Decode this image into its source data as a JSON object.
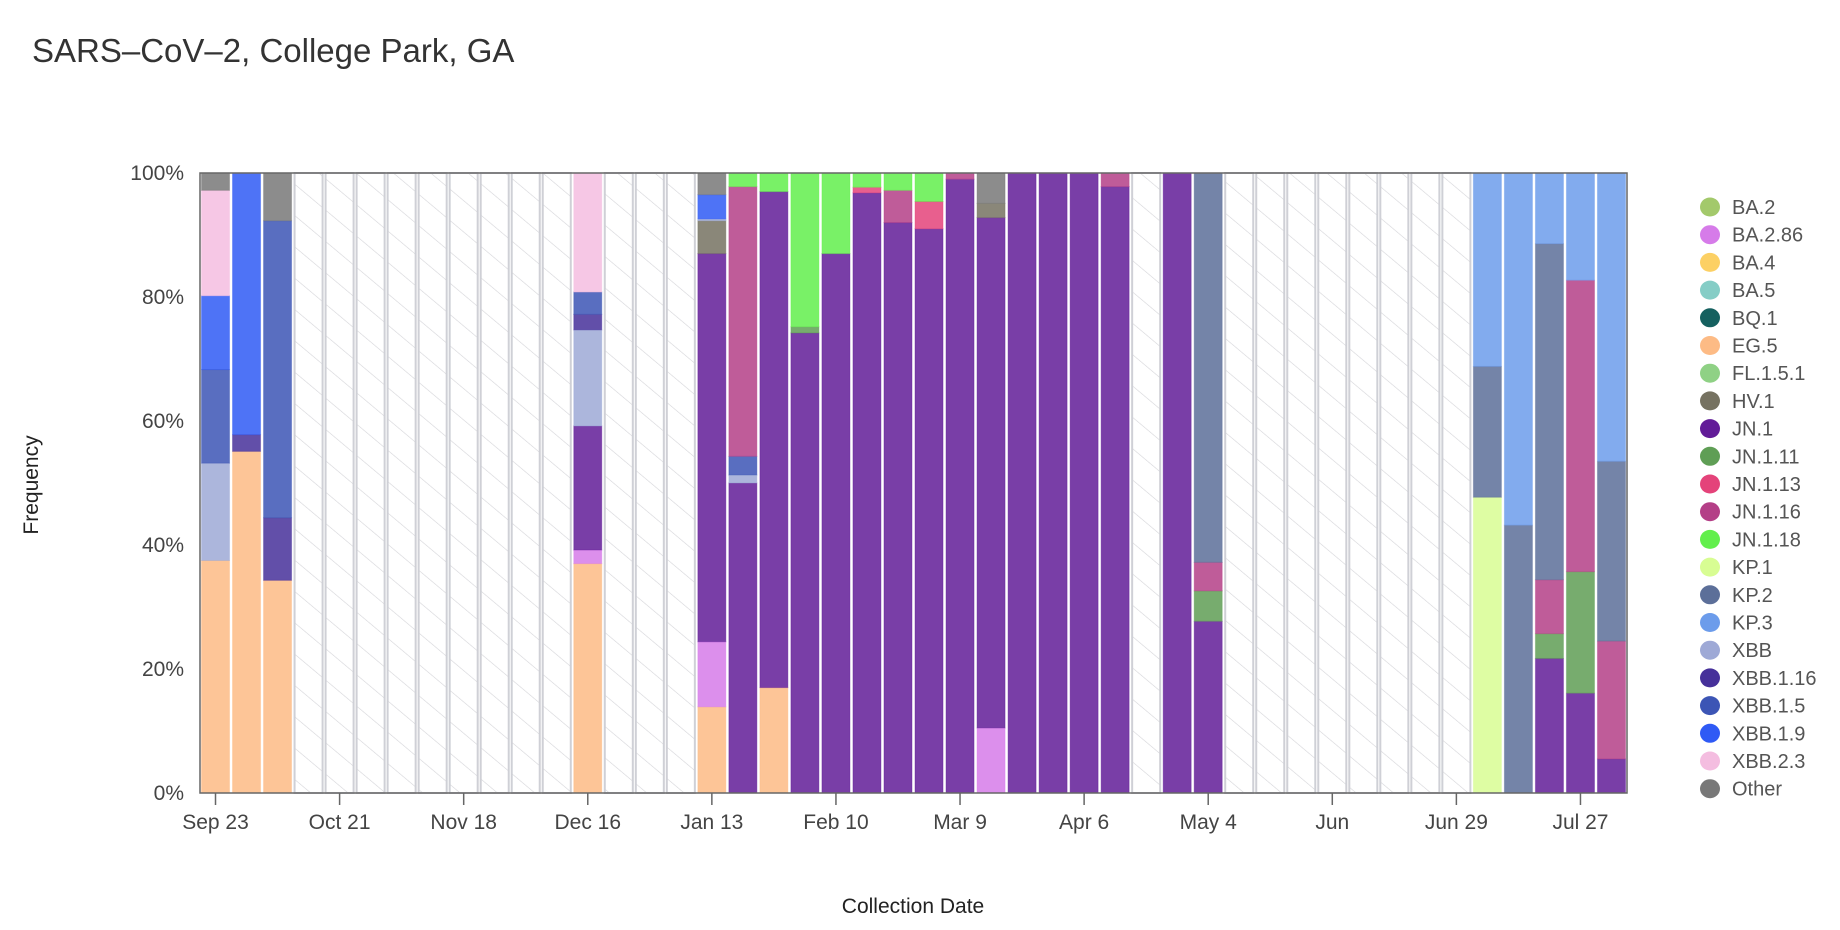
{
  "chart_data": {
    "type": "bar",
    "stacked": true,
    "title": "SARS–CoV–2, College Park, GA",
    "xlabel": "Collection Date",
    "ylabel": "Frequency",
    "ylim": [
      0,
      100
    ],
    "y_ticks": [
      "0%",
      "20%",
      "40%",
      "60%",
      "80%",
      "100%"
    ],
    "x_ticks": [
      {
        "label": "Sep 23",
        "week": 0
      },
      {
        "label": "Oct 21",
        "week": 4
      },
      {
        "label": "Nov 18",
        "week": 8
      },
      {
        "label": "Dec 16",
        "week": 12
      },
      {
        "label": "Jan 13",
        "week": 16
      },
      {
        "label": "Feb 10",
        "week": 20
      },
      {
        "label": "Mar 9",
        "week": 24
      },
      {
        "label": "Apr 6",
        "week": 28
      },
      {
        "label": "May 4",
        "week": 32
      },
      {
        "label": "Jun",
        "week": 36
      },
      {
        "label": "Jun 29",
        "week": 40
      },
      {
        "label": "Jul 27",
        "week": 44
      }
    ],
    "legend_position": "right",
    "legend": [
      {
        "name": "BA.2",
        "color": "#a3c96b"
      },
      {
        "name": "BA.2.86",
        "color": "#d67be9"
      },
      {
        "name": "BA.4",
        "color": "#fcd064"
      },
      {
        "name": "BA.5",
        "color": "#85cdc6"
      },
      {
        "name": "BQ.1",
        "color": "#15605f"
      },
      {
        "name": "EG.5",
        "color": "#fdbb85"
      },
      {
        "name": "FL.1.5.1",
        "color": "#8fd185"
      },
      {
        "name": "HV.1",
        "color": "#767261"
      },
      {
        "name": "JN.1",
        "color": "#621c98"
      },
      {
        "name": "JN.1.11",
        "color": "#5f9e55"
      },
      {
        "name": "JN.1.13",
        "color": "#e4437a"
      },
      {
        "name": "JN.1.16",
        "color": "#b43f87"
      },
      {
        "name": "JN.1.18",
        "color": "#62ef4c"
      },
      {
        "name": "KP.1",
        "color": "#d8fd93"
      },
      {
        "name": "KP.2",
        "color": "#5c6f99"
      },
      {
        "name": "KP.3",
        "color": "#6c9ceb"
      },
      {
        "name": "XBB",
        "color": "#9ea9d6"
      },
      {
        "name": "XBB.1.16",
        "color": "#46309a"
      },
      {
        "name": "XBB.1.5",
        "color": "#3c55b5"
      },
      {
        "name": "XBB.1.9",
        "color": "#2f5af5"
      },
      {
        "name": "XBB.2.3",
        "color": "#f4bde0"
      },
      {
        "name": "Other",
        "color": "#787878"
      }
    ],
    "stack_order": [
      "EG.5",
      "BA.2.86",
      "KP.1",
      "JN.1",
      "JN.1.11",
      "HV.1",
      "XBB",
      "XBB.1.16",
      "XBB.1.5",
      "JN.1.16",
      "JN.1.13",
      "KP.2",
      "XBB.1.9",
      "JN.1.18",
      "XBB.2.3",
      "KP.3",
      "Other"
    ],
    "weeks": [
      {
        "date": "Sep 23",
        "values": {
          "EG.5": 37.5,
          "XBB": 15.7,
          "XBB.1.5": 15.1,
          "XBB.1.9": 11.9,
          "XBB.2.3": 17.0,
          "Other": 2.8
        }
      },
      {
        "date": "Sep 30",
        "values": {
          "EG.5": 55.1,
          "XBB.1.16": 2.7,
          "XBB.1.9": 42.2
        }
      },
      {
        "date": "Oct 7",
        "values": {
          "EG.5": 34.3,
          "XBB.1.16": 10.1,
          "XBB.1.5": 47.9,
          "Other": 7.7
        }
      },
      {
        "date": "Oct 14",
        "values": null
      },
      {
        "date": "Oct 21",
        "values": null
      },
      {
        "date": "Oct 28",
        "values": null
      },
      {
        "date": "Nov 4",
        "values": null
      },
      {
        "date": "Nov 11",
        "values": null
      },
      {
        "date": "Nov 18",
        "values": null
      },
      {
        "date": "Nov 25",
        "values": null
      },
      {
        "date": "Dec 2",
        "values": null
      },
      {
        "date": "Dec 9",
        "values": null
      },
      {
        "date": "Dec 16",
        "values": {
          "BA.2.86": 2.2,
          "EG.5": 37.0,
          "JN.1": 20.0,
          "XBB": 15.5,
          "XBB.1.16": 2.5,
          "XBB.1.5": 3.6,
          "XBB.2.3": 19.2
        }
      },
      {
        "date": "Dec 23",
        "values": null
      },
      {
        "date": "Dec 30",
        "values": null
      },
      {
        "date": "Jan 6",
        "values": null
      },
      {
        "date": "Jan 13",
        "values": {
          "BA.2.86": 10.5,
          "EG.5": 13.9,
          "HV.1": 5.3,
          "JN.1": 62.6,
          "XBB": 0.3,
          "XBB.1.9": 3.9,
          "Other": 3.5
        }
      },
      {
        "date": "Jan 20",
        "values": {
          "JN.1": 50.0,
          "JN.1.16": 43.5,
          "JN.1.18": 2.2,
          "XBB": 1.3,
          "XBB.1.5": 3.0
        }
      },
      {
        "date": "Jan 27",
        "values": {
          "EG.5": 17.0,
          "JN.1": 80.0,
          "JN.1.18": 3.0
        }
      },
      {
        "date": "Feb 3",
        "values": {
          "JN.1.11": 1.0,
          "JN.1": 74.2,
          "JN.1.18": 24.8
        }
      },
      {
        "date": "Feb 10",
        "values": {
          "JN.1": 87.0,
          "JN.1.18": 13.0
        }
      },
      {
        "date": "Feb 17",
        "values": {
          "JN.1": 96.8,
          "JN.1.13": 0.9,
          "JN.1.18": 2.3
        }
      },
      {
        "date": "Feb 24",
        "values": {
          "JN.1": 92.0,
          "JN.1.16": 5.2,
          "JN.1.18": 2.8
        }
      },
      {
        "date": "Mar 2",
        "values": {
          "JN.1": 91.0,
          "JN.1.13": 4.4,
          "JN.1.18": 4.6
        }
      },
      {
        "date": "Mar 9",
        "values": {
          "JN.1": 99.0,
          "JN.1.16": 1.0
        }
      },
      {
        "date": "Mar 16",
        "values": {
          "BA.2.86": 10.5,
          "HV.1": 2.3,
          "JN.1": 82.3,
          "Other": 4.9
        }
      },
      {
        "date": "Mar 23",
        "values": {
          "JN.1": 100
        }
      },
      {
        "date": "Mar 30",
        "values": {
          "JN.1": 100
        }
      },
      {
        "date": "Apr 6",
        "values": {
          "JN.1": 100
        }
      },
      {
        "date": "Apr 13",
        "values": {
          "JN.1": 97.8,
          "JN.1.16": 2.2
        }
      },
      {
        "date": "Apr 20",
        "values": null
      },
      {
        "date": "Apr 27",
        "values": {
          "JN.1": 100
        }
      },
      {
        "date": "May 4",
        "values": {
          "JN.1": 27.7,
          "JN.1.11": 4.9,
          "JN.1.16": 4.6,
          "KP.2": 62.8
        }
      },
      {
        "date": "May 11",
        "values": null
      },
      {
        "date": "May 18",
        "values": null
      },
      {
        "date": "May 25",
        "values": null
      },
      {
        "date": "Jun 1",
        "values": null
      },
      {
        "date": "Jun 8",
        "values": null
      },
      {
        "date": "Jun 15",
        "values": null
      },
      {
        "date": "Jun 22",
        "values": null
      },
      {
        "date": "Jun 29",
        "values": null
      },
      {
        "date": "Jul 6",
        "values": {
          "KP.1": 47.7,
          "KP.2": 21.1,
          "KP.3": 31.2
        }
      },
      {
        "date": "Jul 13",
        "values": {
          "KP.2": 43.2,
          "KP.3": 56.8
        }
      },
      {
        "date": "Jul 20",
        "values": {
          "JN.1": 21.7,
          "JN.1.11": 4.0,
          "JN.1.16": 8.7,
          "KP.2": 54.2,
          "KP.3": 11.4
        }
      },
      {
        "date": "Jul 27",
        "values": {
          "JN.1": 16.1,
          "JN.1.11": 19.6,
          "JN.1.16": 47.0,
          "KP.3": 17.3
        }
      },
      {
        "date": "Aug 3",
        "values": {
          "JN.1": 5.5,
          "JN.1.16": 19.0,
          "KP.2": 29.0,
          "KP.3": 46.5
        }
      }
    ]
  }
}
